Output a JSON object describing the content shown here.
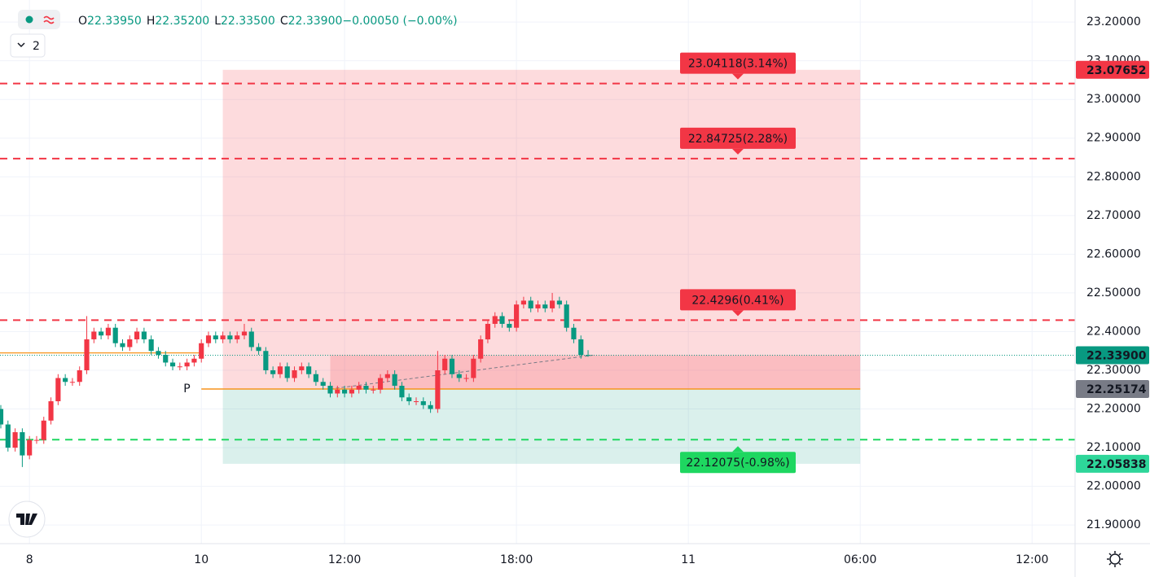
{
  "chart_data": {
    "type": "candlestick",
    "ohlc_header": [
      {
        "key": "O",
        "value": "22.33950"
      },
      {
        "key": "H",
        "value": "22.35200"
      },
      {
        "key": "L",
        "value": "22.33500"
      },
      {
        "key": "C",
        "value": "22.33900"
      },
      {
        "key": "",
        "value": "−0.00050 (−0.00%)"
      }
    ],
    "indicator_count": "2",
    "up_color": "#f23645",
    "down_color": "#089981",
    "xlim": [
      0,
      150
    ],
    "ylim": [
      21.852,
      23.257
    ],
    "xticks": [
      {
        "value": 4,
        "label": "8"
      },
      {
        "value": 28,
        "label": "10"
      },
      {
        "value": 48,
        "label": "12:00"
      },
      {
        "value": 72,
        "label": "18:00"
      },
      {
        "value": 96,
        "label": "11"
      },
      {
        "value": 120,
        "label": "06:00"
      },
      {
        "value": 144,
        "label": "12:00"
      }
    ],
    "yticks": [
      {
        "value": 21.9,
        "label": "21.90000"
      },
      {
        "value": 22.0,
        "label": "22.00000"
      },
      {
        "value": 22.1,
        "label": "22.10000"
      },
      {
        "value": 22.2,
        "label": "22.20000"
      },
      {
        "value": 22.3,
        "label": "22.30000"
      },
      {
        "value": 22.4,
        "label": "22.40000"
      },
      {
        "value": 22.5,
        "label": "22.50000"
      },
      {
        "value": 22.6,
        "label": "22.60000"
      },
      {
        "value": 22.7,
        "label": "22.70000"
      },
      {
        "value": 22.8,
        "label": "22.80000"
      },
      {
        "value": 22.9,
        "label": "22.90000"
      },
      {
        "value": 23.0,
        "label": "23.00000"
      },
      {
        "value": 23.1,
        "label": "23.10000"
      },
      {
        "value": 23.2,
        "label": "23.20000"
      }
    ],
    "grid": true,
    "open": [
      22.2,
      22.16,
      22.1,
      22.14,
      22.08,
      22.12,
      22.12,
      22.17,
      22.22,
      22.28,
      22.27,
      22.27,
      22.3,
      22.38,
      22.4,
      22.39,
      22.41,
      22.37,
      22.36,
      22.38,
      22.4,
      22.38,
      22.35,
      22.34,
      22.32,
      22.31,
      22.31,
      22.32,
      22.33,
      22.37,
      22.39,
      22.38,
      22.39,
      22.38,
      22.39,
      22.4,
      22.36,
      22.35,
      22.3,
      22.29,
      22.31,
      22.28,
      22.3,
      22.31,
      22.29,
      22.27,
      22.26,
      22.24,
      22.25,
      22.24,
      22.25,
      22.26,
      22.25,
      22.25,
      22.28,
      22.29,
      22.26,
      22.23,
      22.22,
      22.22,
      22.21,
      22.2,
      22.3,
      22.33,
      22.29,
      22.28,
      22.28,
      22.33,
      22.38,
      22.42,
      22.44,
      22.42,
      22.41,
      22.47,
      22.48,
      22.46,
      22.47,
      22.46,
      22.48,
      22.47,
      22.41,
      22.38,
      22.3395
    ],
    "high": [
      22.21,
      22.17,
      22.15,
      22.15,
      22.13,
      22.13,
      22.18,
      22.23,
      22.29,
      22.29,
      22.28,
      22.31,
      22.44,
      22.41,
      22.41,
      22.42,
      22.42,
      22.38,
      22.39,
      22.41,
      22.41,
      22.39,
      22.36,
      22.35,
      22.33,
      22.32,
      22.33,
      22.34,
      22.38,
      22.4,
      22.4,
      22.4,
      22.4,
      22.4,
      22.42,
      22.41,
      22.37,
      22.36,
      22.31,
      22.32,
      22.32,
      22.31,
      22.32,
      22.32,
      22.3,
      22.28,
      22.27,
      22.26,
      22.26,
      22.26,
      22.27,
      22.27,
      22.26,
      22.29,
      22.3,
      22.3,
      22.27,
      22.24,
      22.23,
      22.23,
      22.22,
      22.35,
      22.34,
      22.34,
      22.3,
      22.29,
      22.34,
      22.39,
      22.43,
      22.45,
      22.45,
      22.43,
      22.48,
      22.49,
      22.49,
      22.48,
      22.48,
      22.5,
      22.49,
      22.48,
      22.42,
      22.39,
      22.352
    ],
    "low": [
      22.15,
      22.09,
      22.09,
      22.05,
      22.07,
      22.11,
      22.11,
      22.16,
      22.21,
      22.26,
      22.26,
      22.26,
      22.29,
      22.37,
      22.38,
      22.38,
      22.36,
      22.35,
      22.35,
      22.37,
      22.37,
      22.34,
      22.33,
      22.31,
      22.3,
      22.3,
      22.3,
      22.31,
      22.32,
      22.36,
      22.37,
      22.37,
      22.37,
      22.37,
      22.38,
      22.35,
      22.34,
      22.29,
      22.28,
      22.28,
      22.27,
      22.27,
      22.29,
      22.28,
      22.26,
      22.25,
      22.23,
      22.23,
      22.23,
      22.23,
      22.24,
      22.24,
      22.24,
      22.24,
      22.27,
      22.25,
      22.22,
      22.21,
      22.21,
      22.2,
      22.19,
      22.19,
      22.29,
      22.28,
      22.27,
      22.27,
      22.27,
      22.32,
      22.37,
      22.41,
      22.41,
      22.4,
      22.4,
      22.46,
      22.45,
      22.45,
      22.45,
      22.45,
      22.46,
      22.4,
      22.37,
      22.33,
      22.335
    ],
    "close": [
      22.16,
      22.1,
      22.14,
      22.08,
      22.12,
      22.12,
      22.17,
      22.22,
      22.28,
      22.27,
      22.27,
      22.3,
      22.38,
      22.4,
      22.39,
      22.41,
      22.37,
      22.36,
      22.38,
      22.4,
      22.38,
      22.35,
      22.34,
      22.32,
      22.31,
      22.31,
      22.32,
      22.33,
      22.37,
      22.39,
      22.38,
      22.39,
      22.38,
      22.39,
      22.4,
      22.36,
      22.35,
      22.3,
      22.29,
      22.31,
      22.28,
      22.3,
      22.31,
      22.29,
      22.27,
      22.26,
      22.24,
      22.25,
      22.24,
      22.25,
      22.26,
      22.25,
      22.25,
      22.28,
      22.29,
      22.26,
      22.23,
      22.22,
      22.22,
      22.21,
      22.2,
      22.3,
      22.33,
      22.29,
      22.28,
      22.28,
      22.33,
      22.38,
      22.42,
      22.44,
      22.42,
      22.41,
      22.47,
      22.48,
      22.46,
      22.47,
      22.46,
      22.48,
      22.47,
      22.41,
      22.38,
      22.3395,
      22.339
    ],
    "position": {
      "start": 31,
      "fill_start": 46,
      "end": 120,
      "entry": 22.25174,
      "stop": 23.07652,
      "target": 22.05838
    },
    "levels": [
      {
        "value": 23.04118,
        "label": "23.04118(3.14%)",
        "color": "#f23645"
      },
      {
        "value": 22.84725,
        "label": "22.84725(2.28%)",
        "color": "#f23645"
      },
      {
        "value": 22.4296,
        "label": "22.4296(0.41%)",
        "color": "#f23645"
      },
      {
        "value": 22.12075,
        "label": "22.12075(-0.98%)",
        "color": "#1ed760"
      }
    ],
    "pivot": {
      "value": 22.25174,
      "label": "P",
      "start": 28,
      "end": 120,
      "color": "#f7941d"
    },
    "prior_line": {
      "value": 22.345,
      "end": 28,
      "color": "#f7941d"
    },
    "price_tags": [
      {
        "value": 23.07652,
        "label": "23.07652",
        "color": "#f23645",
        "text_color": "#ffffff"
      },
      {
        "value": 22.339,
        "label": "22.33900",
        "color": "#089981",
        "text_color": "#ffffff"
      },
      {
        "value": 22.25174,
        "label": "22.25174",
        "color": "#787b86",
        "text_color": "#ffffff"
      },
      {
        "value": 22.05838,
        "label": "22.05838",
        "color": "#2ed69a",
        "text_color": "#131722"
      }
    ]
  }
}
